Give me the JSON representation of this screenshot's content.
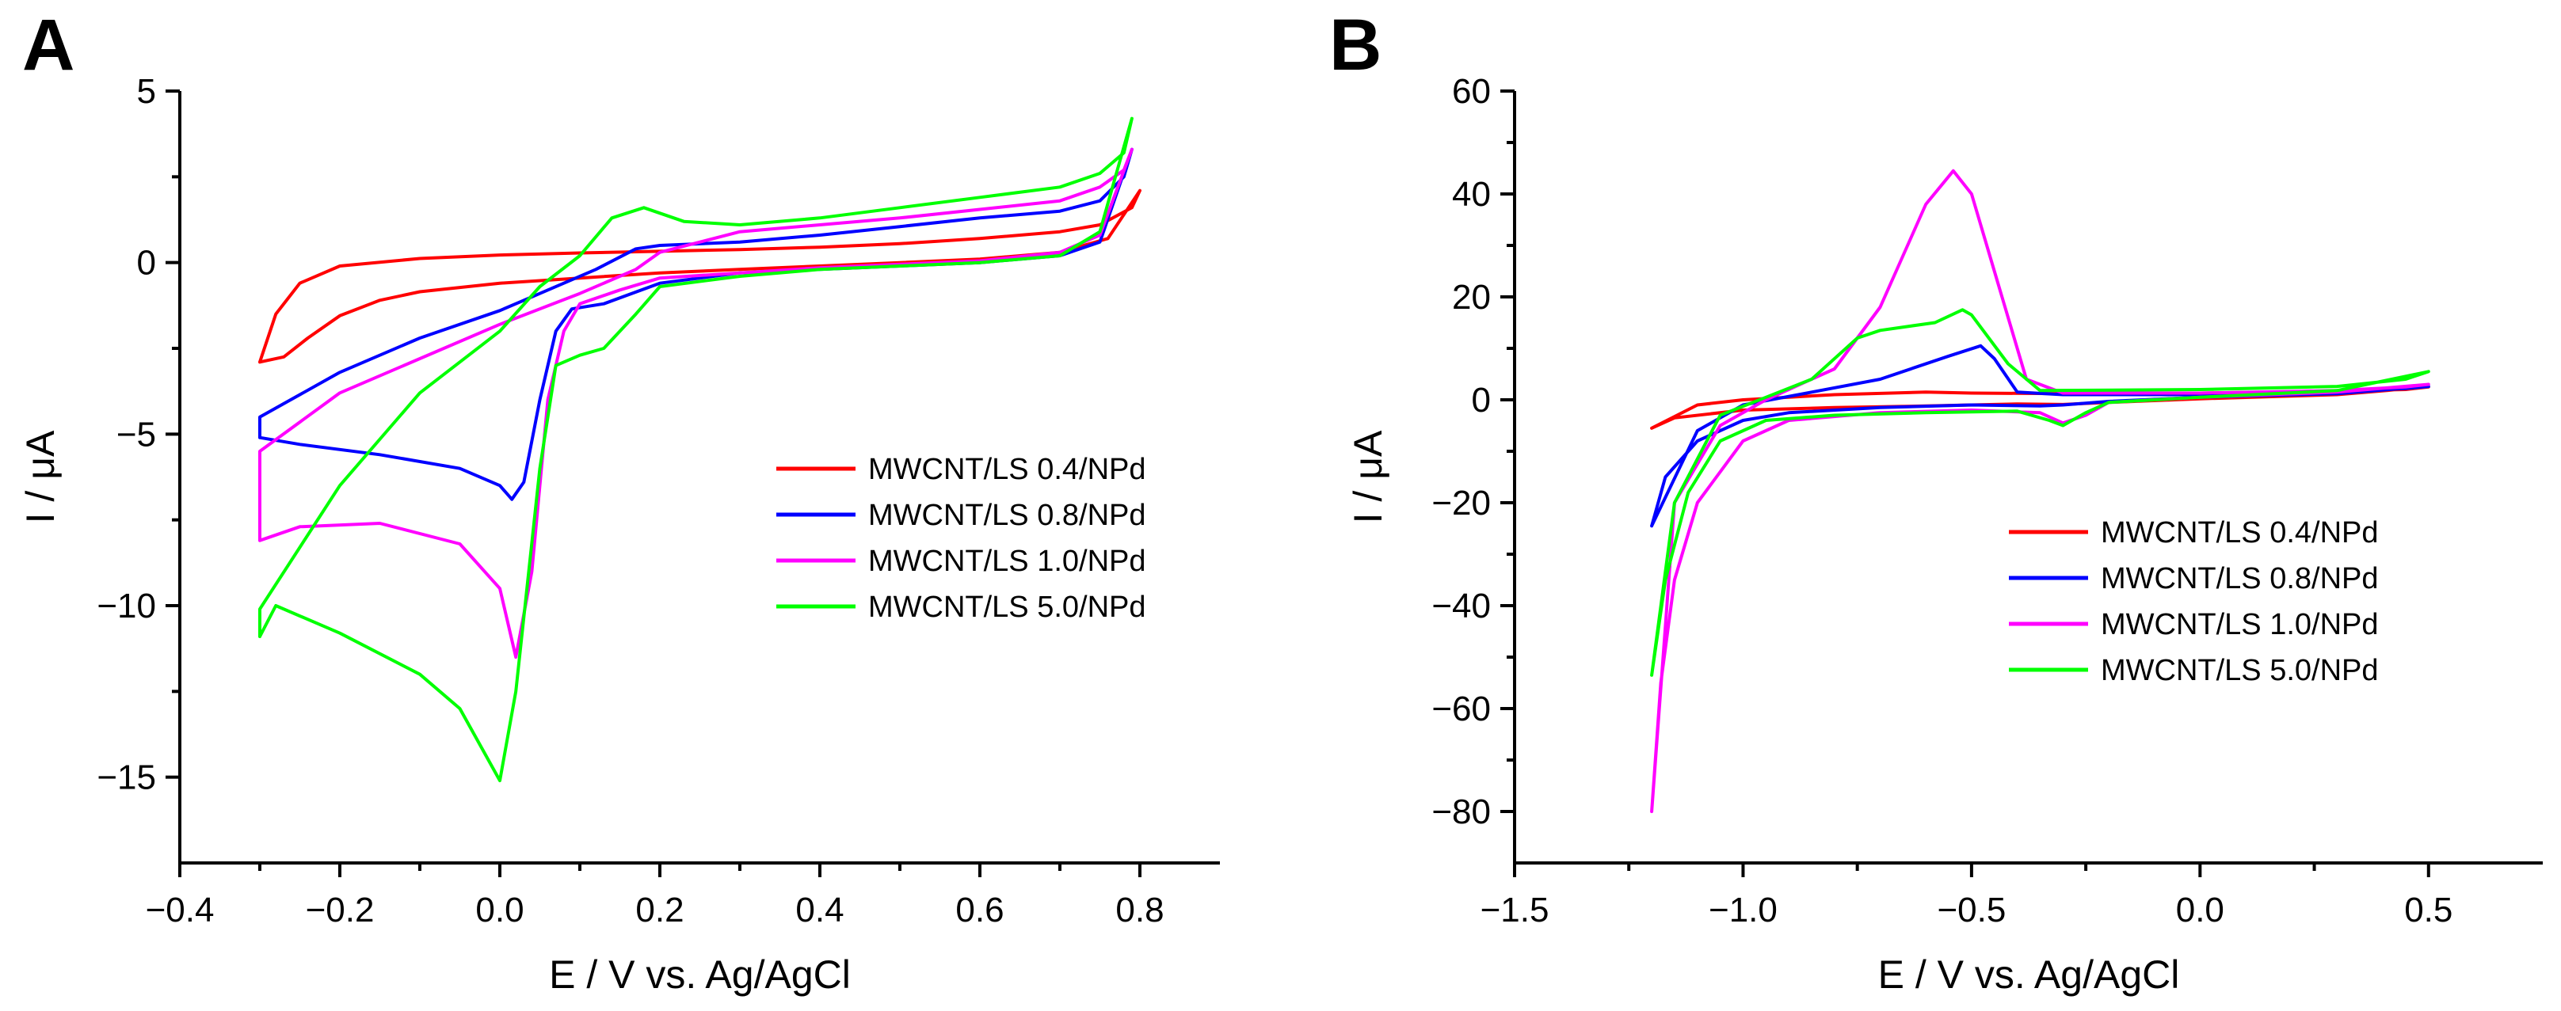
{
  "chart_data": [
    {
      "type": "line",
      "panel": "A",
      "xlabel": "E / V  vs.  Ag/AgCl",
      "ylabel": "I / μA",
      "xlim": [
        -0.4,
        0.9
      ],
      "ylim": [
        -17.5,
        5
      ],
      "xticks": [
        -0.4,
        -0.2,
        0.0,
        0.2,
        0.4,
        0.6,
        0.8
      ],
      "xtick_labels": [
        "−0.4",
        "−0.2",
        "0.0",
        "0.2",
        "0.4",
        "0.6",
        "0.8"
      ],
      "yticks": [
        5,
        0,
        -5,
        -10,
        -15
      ],
      "ytick_labels": [
        "5",
        "0",
        "−5",
        "−10",
        "−15"
      ],
      "legend_position": "center-right",
      "series": [
        {
          "name": "MWCNT/LS 0.4/NPd",
          "color": "#ff0000",
          "points": [
            [
              -0.3,
              -2.9
            ],
            [
              -0.27,
              -2.75
            ],
            [
              -0.24,
              -2.2
            ],
            [
              -0.2,
              -1.55
            ],
            [
              -0.15,
              -1.1
            ],
            [
              -0.1,
              -0.85
            ],
            [
              0.0,
              -0.6
            ],
            [
              0.1,
              -0.45
            ],
            [
              0.2,
              -0.3
            ],
            [
              0.3,
              -0.2
            ],
            [
              0.4,
              -0.1
            ],
            [
              0.5,
              0.0
            ],
            [
              0.6,
              0.1
            ],
            [
              0.7,
              0.3
            ],
            [
              0.76,
              0.7
            ],
            [
              0.8,
              2.1
            ],
            [
              0.79,
              1.6
            ],
            [
              0.75,
              1.1
            ],
            [
              0.7,
              0.9
            ],
            [
              0.6,
              0.7
            ],
            [
              0.5,
              0.55
            ],
            [
              0.4,
              0.45
            ],
            [
              0.3,
              0.38
            ],
            [
              0.2,
              0.33
            ],
            [
              0.1,
              0.28
            ],
            [
              0.0,
              0.22
            ],
            [
              -0.1,
              0.12
            ],
            [
              -0.2,
              -0.1
            ],
            [
              -0.25,
              -0.6
            ],
            [
              -0.28,
              -1.5
            ],
            [
              -0.3,
              -2.9
            ]
          ]
        },
        {
          "name": "MWCNT/LS 0.8/NPd",
          "color": "#0000ff",
          "points": [
            [
              -0.3,
              -5.1
            ],
            [
              -0.25,
              -5.3
            ],
            [
              -0.15,
              -5.6
            ],
            [
              -0.05,
              -6.0
            ],
            [
              0.0,
              -6.5
            ],
            [
              0.015,
              -6.9
            ],
            [
              0.03,
              -6.4
            ],
            [
              0.05,
              -4.0
            ],
            [
              0.07,
              -2.0
            ],
            [
              0.09,
              -1.35
            ],
            [
              0.13,
              -1.2
            ],
            [
              0.2,
              -0.6
            ],
            [
              0.3,
              -0.3
            ],
            [
              0.4,
              -0.2
            ],
            [
              0.5,
              -0.1
            ],
            [
              0.6,
              0.0
            ],
            [
              0.7,
              0.2
            ],
            [
              0.75,
              0.6
            ],
            [
              0.79,
              3.3
            ],
            [
              0.78,
              2.5
            ],
            [
              0.75,
              1.8
            ],
            [
              0.7,
              1.5
            ],
            [
              0.6,
              1.3
            ],
            [
              0.5,
              1.05
            ],
            [
              0.4,
              0.8
            ],
            [
              0.3,
              0.6
            ],
            [
              0.2,
              0.5
            ],
            [
              0.17,
              0.4
            ],
            [
              0.12,
              -0.2
            ],
            [
              0.05,
              -0.9
            ],
            [
              0.0,
              -1.4
            ],
            [
              -0.1,
              -2.2
            ],
            [
              -0.2,
              -3.2
            ],
            [
              -0.3,
              -4.5
            ],
            [
              -0.3,
              -5.1
            ]
          ]
        },
        {
          "name": "MWCNT/LS 1.0/NPd",
          "color": "#ff00ff",
          "points": [
            [
              -0.3,
              -8.1
            ],
            [
              -0.25,
              -7.7
            ],
            [
              -0.15,
              -7.6
            ],
            [
              -0.05,
              -8.2
            ],
            [
              0.0,
              -9.5
            ],
            [
              0.02,
              -11.5
            ],
            [
              0.04,
              -9.0
            ],
            [
              0.06,
              -4.0
            ],
            [
              0.08,
              -2.0
            ],
            [
              0.1,
              -1.2
            ],
            [
              0.15,
              -0.8
            ],
            [
              0.2,
              -0.45
            ],
            [
              0.3,
              -0.3
            ],
            [
              0.4,
              -0.15
            ],
            [
              0.5,
              -0.05
            ],
            [
              0.6,
              0.05
            ],
            [
              0.7,
              0.3
            ],
            [
              0.75,
              0.8
            ],
            [
              0.79,
              3.3
            ],
            [
              0.78,
              2.7
            ],
            [
              0.75,
              2.2
            ],
            [
              0.7,
              1.8
            ],
            [
              0.6,
              1.55
            ],
            [
              0.5,
              1.3
            ],
            [
              0.4,
              1.1
            ],
            [
              0.3,
              0.9
            ],
            [
              0.2,
              0.3
            ],
            [
              0.17,
              -0.2
            ],
            [
              0.1,
              -0.9
            ],
            [
              0.0,
              -1.8
            ],
            [
              -0.1,
              -2.8
            ],
            [
              -0.2,
              -3.8
            ],
            [
              -0.3,
              -5.5
            ],
            [
              -0.3,
              -8.1
            ]
          ]
        },
        {
          "name": "MWCNT/LS 5.0/NPd",
          "color": "#00ff00",
          "points": [
            [
              -0.3,
              -10.9
            ],
            [
              -0.28,
              -10.0
            ],
            [
              -0.2,
              -10.8
            ],
            [
              -0.1,
              -12.0
            ],
            [
              -0.05,
              -13.0
            ],
            [
              0.0,
              -15.1
            ],
            [
              0.02,
              -12.5
            ],
            [
              0.05,
              -6.0
            ],
            [
              0.07,
              -3.0
            ],
            [
              0.1,
              -2.7
            ],
            [
              0.13,
              -2.5
            ],
            [
              0.17,
              -1.5
            ],
            [
              0.2,
              -0.7
            ],
            [
              0.3,
              -0.4
            ],
            [
              0.4,
              -0.2
            ],
            [
              0.5,
              -0.1
            ],
            [
              0.6,
              0.0
            ],
            [
              0.7,
              0.2
            ],
            [
              0.75,
              0.9
            ],
            [
              0.79,
              4.2
            ],
            [
              0.78,
              3.2
            ],
            [
              0.75,
              2.6
            ],
            [
              0.7,
              2.2
            ],
            [
              0.6,
              1.9
            ],
            [
              0.5,
              1.6
            ],
            [
              0.4,
              1.3
            ],
            [
              0.3,
              1.1
            ],
            [
              0.23,
              1.2
            ],
            [
              0.18,
              1.6
            ],
            [
              0.14,
              1.3
            ],
            [
              0.1,
              0.2
            ],
            [
              0.05,
              -0.7
            ],
            [
              0.0,
              -2.0
            ],
            [
              -0.1,
              -3.8
            ],
            [
              -0.2,
              -6.5
            ],
            [
              -0.3,
              -10.1
            ],
            [
              -0.3,
              -10.9
            ]
          ]
        }
      ]
    },
    {
      "type": "line",
      "panel": "B",
      "xlabel": "E / V  vs.  Ag/AgCl",
      "ylabel": "I / μA",
      "xlim": [
        -1.5,
        0.75
      ],
      "ylim": [
        -90,
        60
      ],
      "xticks": [
        -1.5,
        -1.0,
        -0.5,
        0.0,
        0.5
      ],
      "xtick_labels": [
        "−1.5",
        "−1.0",
        "−0.5",
        "0.0",
        "0.5"
      ],
      "yticks": [
        60,
        40,
        20,
        0,
        -20,
        -40,
        -60,
        -80
      ],
      "ytick_labels": [
        "60",
        "40",
        "20",
        "0",
        "−20",
        "−40",
        "−60",
        "−80"
      ],
      "legend_position": "center-right",
      "series": [
        {
          "name": "MWCNT/LS 0.4/NPd",
          "color": "#ff0000",
          "points": [
            [
              -1.2,
              -5.5
            ],
            [
              -1.15,
              -3.5
            ],
            [
              -1.0,
              -2.0
            ],
            [
              -0.8,
              -1.5
            ],
            [
              -0.6,
              -1.2
            ],
            [
              -0.4,
              -0.8
            ],
            [
              -0.3,
              -0.9
            ],
            [
              -0.2,
              -0.5
            ],
            [
              0.0,
              0.2
            ],
            [
              0.3,
              1.0
            ],
            [
              0.5,
              2.5
            ],
            [
              0.45,
              2.0
            ],
            [
              0.3,
              1.7
            ],
            [
              0.0,
              1.3
            ],
            [
              -0.3,
              1.2
            ],
            [
              -0.5,
              1.3
            ],
            [
              -0.6,
              1.5
            ],
            [
              -0.8,
              1.0
            ],
            [
              -1.0,
              0.0
            ],
            [
              -1.1,
              -1.0
            ],
            [
              -1.2,
              -5.5
            ]
          ]
        },
        {
          "name": "MWCNT/LS 0.8/NPd",
          "color": "#0000ff",
          "points": [
            [
              -1.2,
              -24.5
            ],
            [
              -1.17,
              -15.0
            ],
            [
              -1.1,
              -8.0
            ],
            [
              -1.0,
              -4.0
            ],
            [
              -0.9,
              -2.5
            ],
            [
              -0.7,
              -1.5
            ],
            [
              -0.5,
              -1.0
            ],
            [
              -0.35,
              -1.2
            ],
            [
              -0.3,
              -1.0
            ],
            [
              -0.2,
              -0.3
            ],
            [
              0.0,
              0.5
            ],
            [
              0.3,
              1.2
            ],
            [
              0.5,
              2.6
            ],
            [
              0.45,
              2.2
            ],
            [
              0.3,
              1.6
            ],
            [
              0.0,
              1.0
            ],
            [
              -0.3,
              1.0
            ],
            [
              -0.4,
              1.5
            ],
            [
              -0.45,
              8.0
            ],
            [
              -0.48,
              10.5
            ],
            [
              -0.55,
              8.5
            ],
            [
              -0.7,
              4.0
            ],
            [
              -0.85,
              1.5
            ],
            [
              -1.0,
              -1.0
            ],
            [
              -1.1,
              -6.0
            ],
            [
              -1.2,
              -24.5
            ]
          ]
        },
        {
          "name": "MWCNT/LS 1.0/NPd",
          "color": "#ff00ff",
          "points": [
            [
              -1.2,
              -80.0
            ],
            [
              -1.18,
              -55.0
            ],
            [
              -1.15,
              -35.0
            ],
            [
              -1.1,
              -20.0
            ],
            [
              -1.0,
              -8.0
            ],
            [
              -0.9,
              -4.0
            ],
            [
              -0.7,
              -2.5
            ],
            [
              -0.5,
              -2.0
            ],
            [
              -0.35,
              -2.5
            ],
            [
              -0.3,
              -4.5
            ],
            [
              -0.25,
              -3.0
            ],
            [
              -0.2,
              -0.5
            ],
            [
              0.0,
              0.5
            ],
            [
              0.3,
              1.5
            ],
            [
              0.5,
              3.0
            ],
            [
              0.45,
              2.5
            ],
            [
              0.3,
              1.8
            ],
            [
              0.0,
              1.3
            ],
            [
              -0.3,
              1.3
            ],
            [
              -0.38,
              4.0
            ],
            [
              -0.45,
              25.0
            ],
            [
              -0.5,
              40.0
            ],
            [
              -0.54,
              44.5
            ],
            [
              -0.6,
              38.0
            ],
            [
              -0.7,
              18.0
            ],
            [
              -0.8,
              6.0
            ],
            [
              -0.95,
              0.0
            ],
            [
              -1.05,
              -5.0
            ],
            [
              -1.15,
              -20.0
            ],
            [
              -1.2,
              -80.0
            ]
          ]
        },
        {
          "name": "MWCNT/LS 5.0/NPd",
          "color": "#00ff00",
          "points": [
            [
              -1.2,
              -53.5
            ],
            [
              -1.17,
              -35.0
            ],
            [
              -1.12,
              -18.0
            ],
            [
              -1.05,
              -8.0
            ],
            [
              -0.95,
              -4.0
            ],
            [
              -0.8,
              -3.0
            ],
            [
              -0.6,
              -2.5
            ],
            [
              -0.4,
              -2.2
            ],
            [
              -0.33,
              -4.0
            ],
            [
              -0.3,
              -5.0
            ],
            [
              -0.25,
              -2.5
            ],
            [
              -0.2,
              -0.5
            ],
            [
              0.0,
              0.5
            ],
            [
              0.3,
              1.8
            ],
            [
              0.5,
              5.5
            ],
            [
              0.45,
              4.0
            ],
            [
              0.3,
              2.6
            ],
            [
              0.0,
              2.0
            ],
            [
              -0.35,
              1.8
            ],
            [
              -0.42,
              7.0
            ],
            [
              -0.5,
              16.5
            ],
            [
              -0.52,
              17.5
            ],
            [
              -0.58,
              15.0
            ],
            [
              -0.7,
              13.5
            ],
            [
              -0.75,
              12.0
            ],
            [
              -0.85,
              4.0
            ],
            [
              -0.95,
              0.5
            ],
            [
              -1.05,
              -3.0
            ],
            [
              -1.15,
              -20.0
            ],
            [
              -1.2,
              -53.5
            ]
          ]
        }
      ]
    }
  ]
}
